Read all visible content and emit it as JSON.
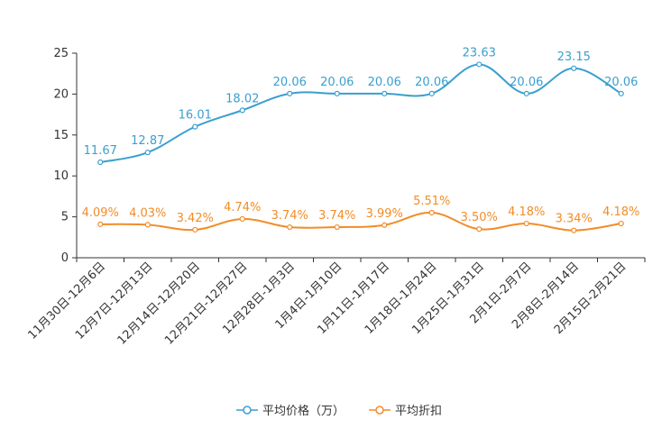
{
  "chart_data": {
    "type": "line",
    "categories": [
      "11月30日-12月6日",
      "12月7日-12月13日",
      "12月14日-12月20日",
      "12月21日-12月27日",
      "12月28日-1月3日",
      "1月4日-1月10日",
      "1月11日-1月17日",
      "1月18日-1月24日",
      "1月25日-1月31日",
      "2月1日-2月7日",
      "2月8日-2月14日",
      "2月15日-2月21日"
    ],
    "ylim": [
      0,
      25
    ],
    "yticks": [
      0,
      5,
      10,
      15,
      20,
      25
    ],
    "series": [
      {
        "name": "平均价格（万）",
        "color": "#3a9fcf",
        "values": [
          11.67,
          12.87,
          16.01,
          18.02,
          20.06,
          20.06,
          20.06,
          20.06,
          23.63,
          20.06,
          23.15,
          20.06
        ],
        "labels": [
          "11.67",
          "12.87",
          "16.01",
          "18.02",
          "20.06",
          "20.06",
          "20.06",
          "20.06",
          "23.63",
          "20.06",
          "23.15",
          "20.06"
        ]
      },
      {
        "name": "平均折扣",
        "color": "#f28c28",
        "values": [
          4.09,
          4.03,
          3.42,
          4.74,
          3.74,
          3.74,
          3.99,
          5.51,
          3.5,
          4.18,
          3.34,
          4.18
        ],
        "labels": [
          "4.09%",
          "4.03%",
          "3.42%",
          "4.74%",
          "3.74%",
          "3.74%",
          "3.99%",
          "5.51%",
          "3.50%",
          "4.18%",
          "3.34%",
          "4.18%"
        ]
      }
    ],
    "legend_position": "bottom-center"
  }
}
